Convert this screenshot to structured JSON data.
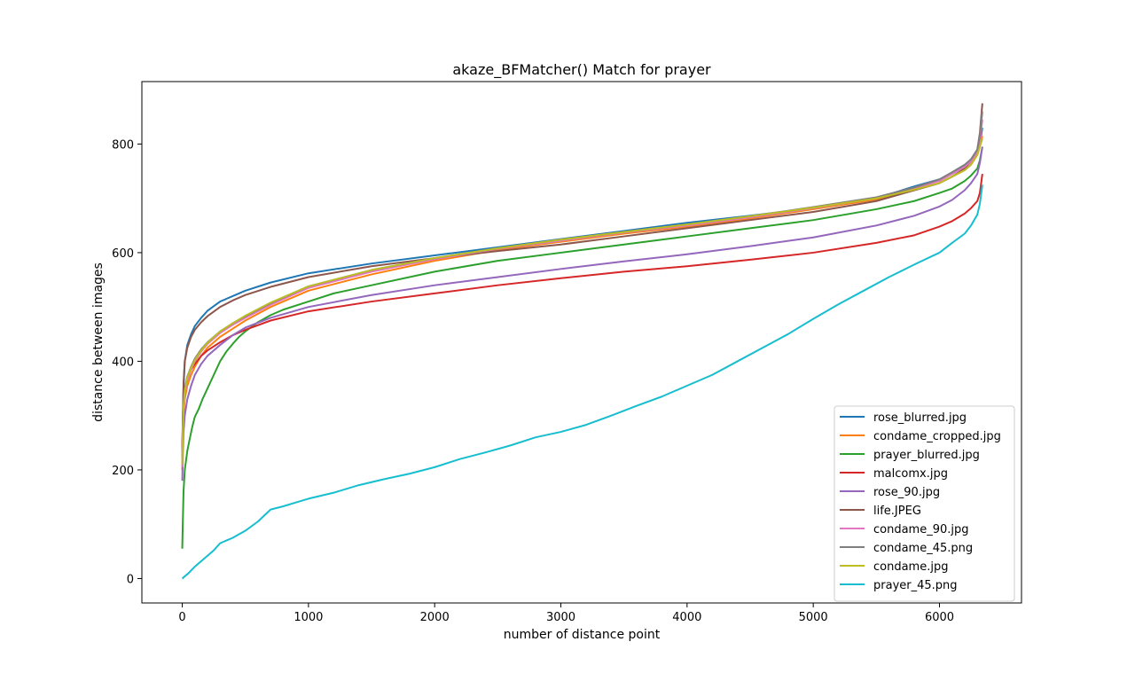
{
  "chart_data": {
    "type": "line",
    "title": "akaze_BFMatcher() Match for prayer",
    "xlabel": "number of distance point",
    "ylabel": "distance between images",
    "xlim": [
      -320,
      6650
    ],
    "ylim": [
      -45,
      915
    ],
    "xticks": [
      0,
      1000,
      2000,
      3000,
      4000,
      5000,
      6000
    ],
    "yticks": [
      0,
      200,
      400,
      600,
      800
    ],
    "grid": false,
    "legend_position": "lower-right",
    "series": [
      {
        "name": "rose_blurred.jpg",
        "color": "#1f77b4",
        "x": [
          0,
          5,
          10,
          20,
          40,
          70,
          100,
          150,
          200,
          300,
          400,
          500,
          700,
          1000,
          1500,
          2000,
          2500,
          3000,
          3500,
          4000,
          4500,
          5000,
          5500,
          5800,
          6000,
          6100,
          6200,
          6250,
          6300,
          6320,
          6340
        ],
        "y": [
          225,
          300,
          350,
          400,
          430,
          450,
          465,
          480,
          493,
          510,
          520,
          530,
          545,
          562,
          580,
          595,
          610,
          625,
          640,
          655,
          668,
          682,
          700,
          722,
          735,
          745,
          760,
          770,
          785,
          800,
          830
        ]
      },
      {
        "name": "condame_cropped.jpg",
        "color": "#ff7f0e",
        "x": [
          0,
          5,
          10,
          20,
          40,
          70,
          100,
          150,
          200,
          300,
          400,
          500,
          700,
          1000,
          1500,
          2000,
          2500,
          3000,
          3500,
          4000,
          4500,
          5000,
          5500,
          5800,
          6000,
          6100,
          6200,
          6250,
          6300,
          6320,
          6340
        ],
        "y": [
          200,
          260,
          300,
          330,
          355,
          375,
          390,
          410,
          425,
          445,
          460,
          475,
          500,
          530,
          560,
          585,
          605,
          620,
          635,
          648,
          663,
          680,
          698,
          715,
          728,
          740,
          752,
          762,
          780,
          795,
          815
        ]
      },
      {
        "name": "prayer_blurred.jpg",
        "color": "#2ca02c",
        "x": [
          0,
          5,
          10,
          20,
          40,
          60,
          80,
          100,
          130,
          160,
          200,
          250,
          300,
          350,
          400,
          450,
          500,
          600,
          700,
          800,
          1000,
          1200,
          1500,
          2000,
          2500,
          3000,
          3500,
          4000,
          4500,
          5000,
          5500,
          5800,
          6000,
          6100,
          6200,
          6250,
          6300,
          6320,
          6340
        ],
        "y": [
          55,
          110,
          160,
          200,
          235,
          258,
          280,
          298,
          312,
          330,
          350,
          375,
          400,
          418,
          432,
          445,
          455,
          472,
          485,
          495,
          510,
          525,
          540,
          565,
          585,
          600,
          615,
          630,
          645,
          660,
          680,
          695,
          710,
          718,
          732,
          742,
          755,
          770,
          795
        ]
      },
      {
        "name": "malcomx.jpg",
        "color": "#d62728",
        "x": [
          0,
          5,
          10,
          20,
          40,
          70,
          100,
          150,
          200,
          300,
          400,
          500,
          700,
          1000,
          1500,
          2000,
          2500,
          3000,
          3500,
          4000,
          4500,
          5000,
          5500,
          5800,
          6000,
          6100,
          6200,
          6250,
          6300,
          6320,
          6340
        ],
        "y": [
          240,
          300,
          330,
          350,
          370,
          385,
          395,
          410,
          420,
          435,
          448,
          458,
          475,
          492,
          510,
          525,
          540,
          553,
          565,
          575,
          587,
          600,
          618,
          632,
          648,
          658,
          672,
          682,
          695,
          710,
          745
        ]
      },
      {
        "name": "rose_90.jpg",
        "color": "#9467bd",
        "x": [
          0,
          5,
          10,
          20,
          40,
          70,
          100,
          150,
          200,
          300,
          400,
          500,
          700,
          1000,
          1500,
          2000,
          2500,
          3000,
          3500,
          4000,
          4500,
          5000,
          5500,
          5800,
          6000,
          6100,
          6200,
          6250,
          6300,
          6320,
          6340
        ],
        "y": [
          180,
          230,
          270,
          300,
          330,
          355,
          375,
          395,
          410,
          430,
          448,
          462,
          480,
          500,
          522,
          540,
          555,
          570,
          584,
          597,
          612,
          628,
          650,
          668,
          685,
          697,
          715,
          728,
          745,
          765,
          795
        ]
      },
      {
        "name": "life.JPEG",
        "color": "#8c564b",
        "x": [
          0,
          5,
          10,
          20,
          40,
          70,
          100,
          150,
          200,
          300,
          400,
          500,
          700,
          1000,
          1500,
          2000,
          2500,
          3000,
          3500,
          4000,
          4500,
          5000,
          5500,
          5800,
          6000,
          6100,
          6200,
          6250,
          6300,
          6320,
          6340
        ],
        "y": [
          210,
          300,
          360,
          400,
          425,
          445,
          458,
          472,
          483,
          500,
          512,
          522,
          537,
          555,
          575,
          590,
          603,
          615,
          630,
          645,
          660,
          675,
          695,
          715,
          728,
          740,
          755,
          768,
          790,
          820,
          875
        ]
      },
      {
        "name": "condame_90.jpg",
        "color": "#e377c2",
        "x": [
          0,
          5,
          10,
          20,
          40,
          70,
          100,
          150,
          200,
          300,
          400,
          500,
          700,
          1000,
          1500,
          2000,
          2500,
          3000,
          3500,
          4000,
          4500,
          5000,
          5500,
          5800,
          6000,
          6100,
          6200,
          6250,
          6300,
          6320,
          6340
        ],
        "y": [
          205,
          270,
          310,
          340,
          365,
          385,
          400,
          418,
          432,
          452,
          467,
          480,
          504,
          535,
          565,
          588,
          607,
          622,
          637,
          650,
          665,
          682,
          700,
          718,
          732,
          745,
          758,
          768,
          785,
          805,
          845
        ]
      },
      {
        "name": "condame_45.png",
        "color": "#7f7f7f",
        "x": [
          0,
          5,
          10,
          20,
          40,
          70,
          100,
          150,
          200,
          300,
          400,
          500,
          700,
          1000,
          1500,
          2000,
          2500,
          3000,
          3500,
          4000,
          4500,
          5000,
          5500,
          5800,
          6000,
          6100,
          6200,
          6250,
          6300,
          6320,
          6340
        ],
        "y": [
          215,
          280,
          320,
          348,
          372,
          390,
          405,
          422,
          435,
          455,
          470,
          483,
          507,
          538,
          568,
          590,
          608,
          624,
          638,
          652,
          667,
          684,
          702,
          720,
          735,
          748,
          762,
          772,
          790,
          815,
          860
        ]
      },
      {
        "name": "condame.jpg",
        "color": "#bcbd22",
        "x": [
          0,
          5,
          10,
          20,
          40,
          70,
          100,
          150,
          200,
          300,
          400,
          500,
          700,
          1000,
          1500,
          2000,
          2500,
          3000,
          3500,
          4000,
          4500,
          5000,
          5500,
          5800,
          6000,
          6100,
          6200,
          6250,
          6300,
          6320,
          6340
        ],
        "y": [
          210,
          275,
          315,
          345,
          370,
          388,
          402,
          420,
          434,
          455,
          470,
          484,
          508,
          538,
          568,
          590,
          608,
          624,
          638,
          652,
          667,
          683,
          700,
          716,
          728,
          740,
          752,
          762,
          780,
          795,
          810
        ]
      },
      {
        "name": "prayer_45.png",
        "color": "#17becf",
        "x": [
          0,
          50,
          100,
          150,
          200,
          250,
          300,
          400,
          500,
          600,
          700,
          800,
          900,
          1000,
          1200,
          1400,
          1600,
          1800,
          2000,
          2200,
          2400,
          2600,
          2800,
          3000,
          3200,
          3400,
          3600,
          3800,
          4000,
          4200,
          4400,
          4600,
          4800,
          5000,
          5200,
          5400,
          5600,
          5800,
          6000,
          6100,
          6200,
          6250,
          6300,
          6320,
          6340
        ],
        "y": [
          0,
          10,
          22,
          32,
          42,
          52,
          65,
          75,
          88,
          105,
          127,
          133,
          140,
          147,
          158,
          172,
          183,
          193,
          205,
          220,
          232,
          245,
          260,
          270,
          283,
          300,
          318,
          335,
          355,
          375,
          400,
          425,
          450,
          478,
          505,
          530,
          555,
          578,
          600,
          618,
          635,
          650,
          670,
          690,
          725
        ]
      }
    ]
  }
}
